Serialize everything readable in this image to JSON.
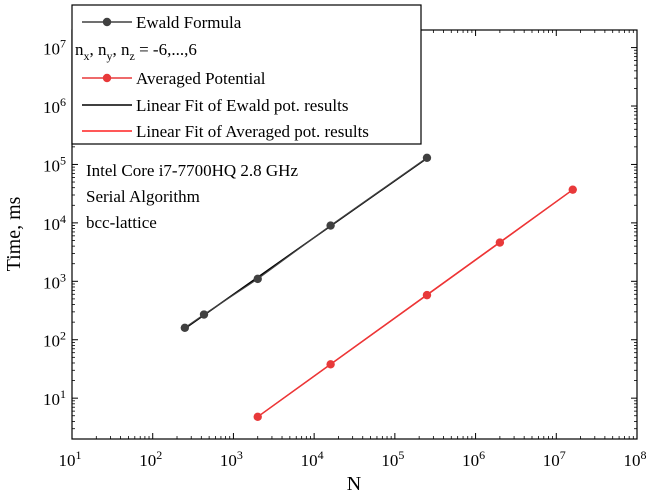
{
  "chart_data": {
    "type": "line",
    "x_scale": "log",
    "y_scale": "log",
    "xlim": [
      10,
      100000000
    ],
    "ylim": [
      2,
      20000000
    ],
    "xlabel": "N",
    "ylabel": "Time, ms",
    "grid": false,
    "legend_position": "top-left",
    "x_ticks": [
      {
        "value": 10,
        "base": "10",
        "exp": "1"
      },
      {
        "value": 100,
        "base": "10",
        "exp": "2"
      },
      {
        "value": 1000,
        "base": "10",
        "exp": "3"
      },
      {
        "value": 10000,
        "base": "10",
        "exp": "4"
      },
      {
        "value": 100000,
        "base": "10",
        "exp": "5"
      },
      {
        "value": 1000000,
        "base": "10",
        "exp": "6"
      },
      {
        "value": 10000000,
        "base": "10",
        "exp": "7"
      },
      {
        "value": 100000000,
        "base": "10",
        "exp": "8"
      }
    ],
    "y_ticks": [
      {
        "value": 10,
        "base": "10",
        "exp": "1"
      },
      {
        "value": 100,
        "base": "10",
        "exp": "2"
      },
      {
        "value": 1000,
        "base": "10",
        "exp": "3"
      },
      {
        "value": 10000,
        "base": "10",
        "exp": "4"
      },
      {
        "value": 100000,
        "base": "10",
        "exp": "5"
      },
      {
        "value": 1000000,
        "base": "10",
        "exp": "6"
      },
      {
        "value": 10000000,
        "base": "10",
        "exp": "7"
      }
    ],
    "series": [
      {
        "name": "Ewald Formula",
        "color": "#404040",
        "markers": true,
        "x": [
          250,
          432,
          2000,
          16000,
          250000
        ],
        "y": [
          160,
          270,
          1100,
          9000,
          130000
        ]
      },
      {
        "name": "Averaged Potential",
        "color": "#e8393a",
        "markers": true,
        "x": [
          2000,
          16000,
          250000,
          2000000,
          16000000
        ],
        "y": [
          4.8,
          38,
          580,
          4600,
          37000
        ]
      },
      {
        "name": "Linear Fit of Ewald pot. results",
        "color": "#000000",
        "markers": false,
        "x": [
          250,
          250000
        ],
        "y": [
          155,
          128000
        ]
      },
      {
        "name": "Linear Fit of Averaged pot. results",
        "color": "#ff2020",
        "markers": false,
        "x": [
          2000,
          16000000
        ],
        "y": [
          4.8,
          37000
        ]
      }
    ],
    "legend": [
      {
        "kind": "series",
        "label": "Ewald Formula",
        "color": "#404040",
        "marker": true
      },
      {
        "kind": "subscripts",
        "parts": [
          {
            "t": "n",
            "sub": "x"
          },
          {
            "t": ", n",
            "sub": "y"
          },
          {
            "t": ", n",
            "sub": "z"
          },
          {
            "t": " = -6,...,6",
            "sub": ""
          }
        ]
      },
      {
        "kind": "series",
        "label": "Averaged Potential",
        "color": "#e8393a",
        "marker": true
      },
      {
        "kind": "series",
        "label": "Linear Fit of Ewald pot. results",
        "color": "#000000",
        "marker": false
      },
      {
        "kind": "series",
        "label": "Linear Fit of Averaged pot. results",
        "color": "#ff2020",
        "marker": false
      }
    ],
    "annotations": [
      "Intel Core i7-7700HQ 2.8 GHz",
      "Serial Algorithm",
      "bcc-lattice"
    ]
  }
}
